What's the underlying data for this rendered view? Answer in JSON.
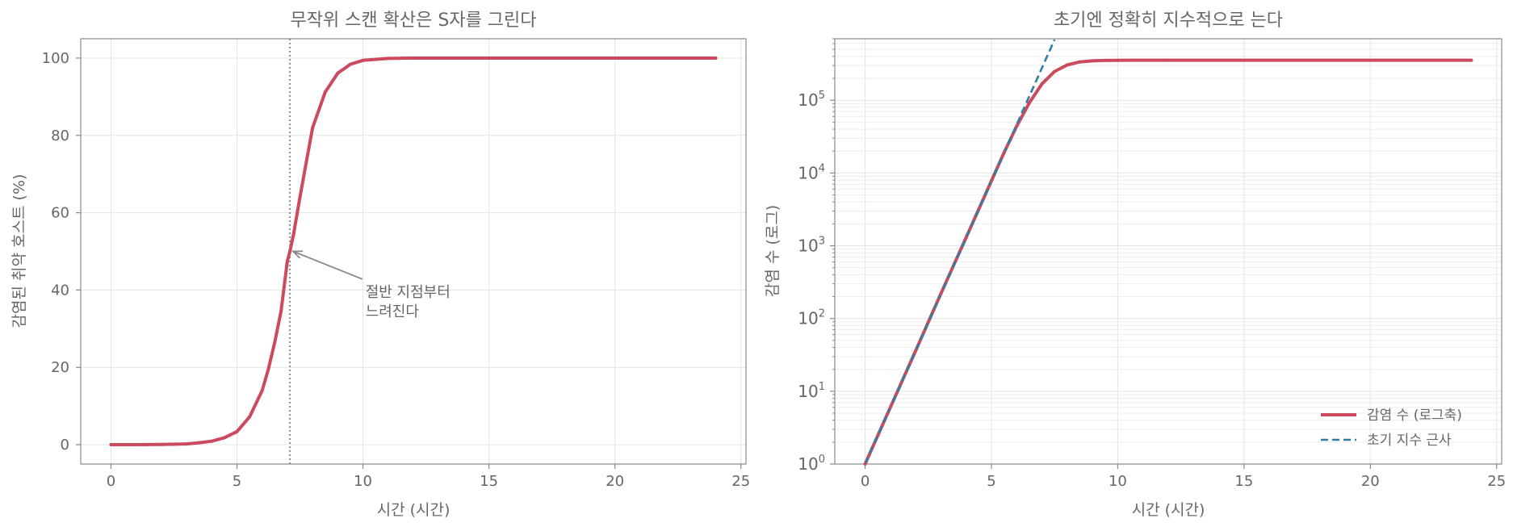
{
  "colors": {
    "infected": "#cc4a5e",
    "approx": "#2f7fa0",
    "axis": "#888888",
    "grid": "#e4e4e4",
    "text": "#666666"
  },
  "chart_data": [
    {
      "type": "line",
      "title": "무작위 스캔 확산은 S자를 그린다",
      "xlabel": "시간 (시간)",
      "ylabel": "감염된 취약 호스트 (%)",
      "xlim": [
        -1.2,
        25.2
      ],
      "ylim": [
        -5,
        105
      ],
      "xticks": [
        0,
        5,
        10,
        15,
        20,
        25
      ],
      "yticks": [
        0,
        20,
        40,
        60,
        80,
        100
      ],
      "grid": true,
      "series": [
        {
          "x": [
            0,
            1,
            2,
            3,
            3.5,
            4,
            4.5,
            5,
            5.5,
            6,
            6.25,
            6.5,
            6.75,
            7,
            7.1,
            7.25,
            7.5,
            7.75,
            8,
            8.5,
            9,
            9.5,
            10,
            11,
            12,
            14,
            24
          ],
          "y": [
            0.0,
            0.01,
            0.05,
            0.2,
            0.5,
            0.9,
            1.8,
            3.4,
            7.2,
            14.0,
            19.6,
            26.5,
            34.5,
            47.5,
            50.0,
            54.5,
            64.0,
            73.0,
            82.0,
            91.2,
            96.1,
            98.4,
            99.4,
            99.9,
            100,
            100,
            100
          ]
        }
      ],
      "vline_x": 7.1,
      "annotation": {
        "lines": [
          "절반 지점부터",
          "느려진다"
        ],
        "point": [
          7.1,
          50
        ],
        "text_at": [
          10.1,
          37
        ]
      }
    },
    {
      "type": "line",
      "title": "초기엔 정확히 지수적으로 는다",
      "xlabel": "시간 (시간)",
      "ylabel": "감염 수 (로그)",
      "xlim": [
        -1.2,
        25.2
      ],
      "ylim": [
        1,
        700000
      ],
      "yscale": "log",
      "xticks": [
        0,
        5,
        10,
        15,
        20,
        25
      ],
      "ytick_exponents": [
        0,
        1,
        2,
        3,
        4,
        5
      ],
      "grid": true,
      "legend": "bottom-right",
      "series": [
        {
          "name": "감염 수 (로그축)",
          "x": [
            0,
            1,
            2,
            3,
            4,
            5,
            5.5,
            6,
            6.5,
            7,
            7.5,
            8,
            8.5,
            9,
            9.5,
            10,
            11,
            12,
            24
          ],
          "y": [
            1,
            6,
            36,
            220,
            1300,
            7800,
            19000,
            44000,
            92000,
            168000,
            248000,
            305000,
            336000,
            348000,
            352000,
            354000,
            355000,
            355000,
            355000
          ]
        },
        {
          "name": "초기 지수 근사",
          "x": [
            0,
            7.5
          ],
          "y": [
            1,
            680000
          ]
        }
      ]
    }
  ]
}
